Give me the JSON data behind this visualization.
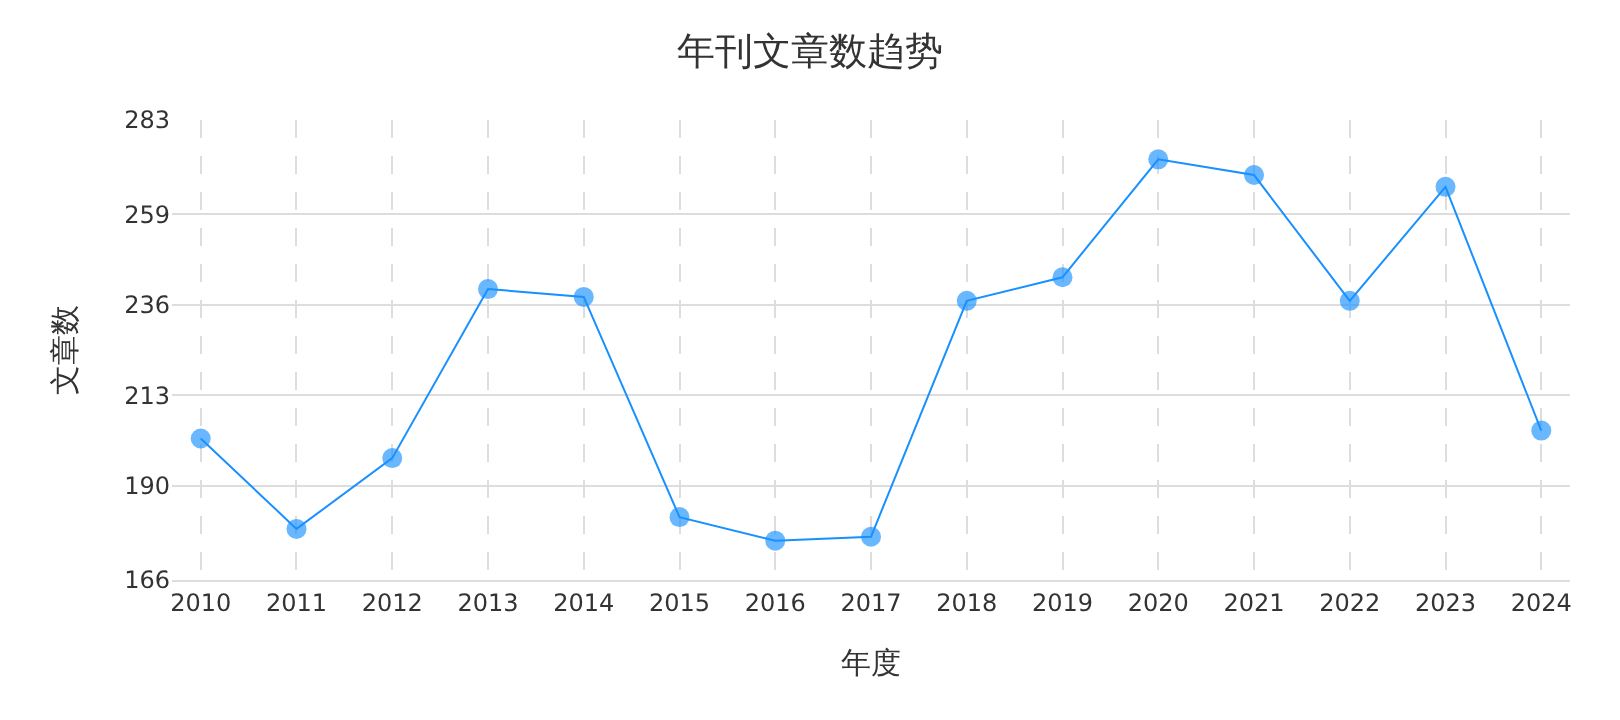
{
  "chart_data": {
    "type": "line",
    "title": "年刊文章数趋势",
    "xlabel": "年度",
    "ylabel": "文章数",
    "categories": [
      "2010",
      "2011",
      "2012",
      "2013",
      "2014",
      "2015",
      "2016",
      "2017",
      "2018",
      "2019",
      "2020",
      "2021",
      "2022",
      "2023",
      "2024"
    ],
    "series": [
      {
        "color": "#1890ff",
        "values": [
          202,
          179,
          197,
          240,
          238,
          182,
          176,
          177,
          237,
          243,
          273,
          269,
          237,
          266,
          204
        ]
      }
    ],
    "ylim": [
      166,
      283
    ],
    "yticks": [
      166,
      190,
      213,
      236,
      259,
      283
    ],
    "grid": true,
    "marker": "circle",
    "line_style": "solid"
  }
}
